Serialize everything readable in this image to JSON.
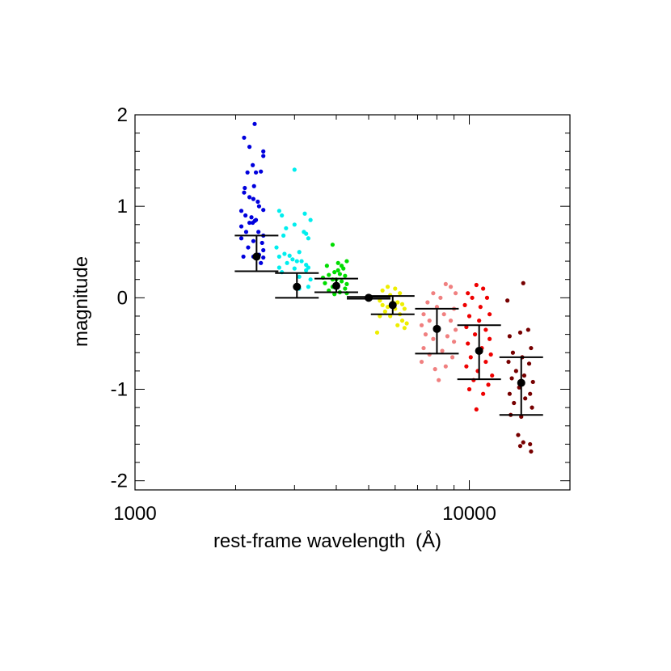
{
  "chart_data": {
    "type": "scatter",
    "xlabel": "rest-frame wavelength",
    "xlabel_unit": "(Å)",
    "ylabel": "magnitude",
    "x_scale": "log",
    "xlim": [
      1000,
      20000
    ],
    "ylim": [
      -2.1,
      2.0
    ],
    "x_ticks": [
      1000,
      10000
    ],
    "x_tick_labels": [
      "1000",
      "10000"
    ],
    "y_ticks": [
      2,
      1,
      0,
      -1,
      -2
    ],
    "y_tick_labels": [
      "2",
      "1",
      "0",
      "-1",
      "-2"
    ],
    "grid": false,
    "legend": "none",
    "series": [
      {
        "color": "#0000dd",
        "points": [
          [
            2280,
            1.9
          ],
          [
            2200,
            1.65
          ],
          [
            2120,
            1.75
          ],
          [
            2420,
            1.6
          ],
          [
            2420,
            1.55
          ],
          [
            2250,
            1.45
          ],
          [
            2170,
            1.37
          ],
          [
            2300,
            1.37
          ],
          [
            2380,
            1.38
          ],
          [
            2270,
            1.22
          ],
          [
            2130,
            1.2
          ],
          [
            2120,
            1.15
          ],
          [
            2200,
            1.1
          ],
          [
            2260,
            1.08
          ],
          [
            2330,
            1.05
          ],
          [
            2350,
            1.0
          ],
          [
            2420,
            0.96
          ],
          [
            2080,
            0.95
          ],
          [
            2140,
            0.9
          ],
          [
            2230,
            0.88
          ],
          [
            2280,
            0.84
          ],
          [
            2200,
            0.82
          ],
          [
            2250,
            0.82
          ],
          [
            2300,
            0.85
          ],
          [
            2080,
            0.78
          ],
          [
            2150,
            0.72
          ],
          [
            2340,
            0.72
          ],
          [
            2080,
            0.65
          ],
          [
            2420,
            0.68
          ],
          [
            2260,
            0.62
          ],
          [
            2400,
            0.6
          ],
          [
            2180,
            0.55
          ],
          [
            2420,
            0.52
          ],
          [
            2110,
            0.45
          ],
          [
            2260,
            0.45
          ],
          [
            2350,
            0.47
          ],
          [
            2420,
            0.44
          ],
          [
            2380,
            0.38
          ]
        ]
      },
      {
        "color": "#00eeee",
        "points": [
          [
            3000,
            1.4
          ],
          [
            3220,
            0.92
          ],
          [
            2700,
            0.95
          ],
          [
            2750,
            0.9
          ],
          [
            3350,
            0.85
          ],
          [
            3000,
            0.8
          ],
          [
            2830,
            0.76
          ],
          [
            3200,
            0.72
          ],
          [
            3250,
            0.7
          ],
          [
            2780,
            0.68
          ],
          [
            3300,
            0.65
          ],
          [
            2650,
            0.55
          ],
          [
            3100,
            0.5
          ],
          [
            2800,
            0.48
          ],
          [
            2900,
            0.46
          ],
          [
            2700,
            0.45
          ],
          [
            2960,
            0.42
          ],
          [
            3050,
            0.4
          ],
          [
            2850,
            0.38
          ],
          [
            3150,
            0.4
          ],
          [
            3250,
            0.36
          ],
          [
            2700,
            0.33
          ],
          [
            3000,
            0.32
          ],
          [
            3300,
            0.33
          ],
          [
            2750,
            0.28
          ],
          [
            3250,
            0.3
          ],
          [
            3100,
            0.23
          ],
          [
            3350,
            0.2
          ],
          [
            3300,
            0.12
          ],
          [
            3100,
            0.1
          ]
        ]
      },
      {
        "color": "#00dd00",
        "points": [
          [
            3900,
            0.58
          ],
          [
            4300,
            0.4
          ],
          [
            4050,
            0.38
          ],
          [
            4150,
            0.35
          ],
          [
            3750,
            0.35
          ],
          [
            4200,
            0.32
          ],
          [
            4050,
            0.3
          ],
          [
            3950,
            0.28
          ],
          [
            4100,
            0.26
          ],
          [
            3800,
            0.25
          ],
          [
            4250,
            0.24
          ],
          [
            3650,
            0.22
          ],
          [
            3900,
            0.2
          ],
          [
            4000,
            0.2
          ],
          [
            4150,
            0.18
          ],
          [
            3700,
            0.16
          ],
          [
            4300,
            0.15
          ],
          [
            3900,
            0.12
          ],
          [
            4250,
            0.1
          ],
          [
            3800,
            0.08
          ],
          [
            4100,
            0.06
          ],
          [
            3950,
            0.04
          ],
          [
            4300,
            0.05
          ]
        ]
      },
      {
        "color": "#eeee00",
        "points": [
          [
            5700,
            0.12
          ],
          [
            5500,
            0.08
          ],
          [
            6000,
            0.1
          ],
          [
            6200,
            0.05
          ],
          [
            5800,
            0.03
          ],
          [
            5400,
            -0.03
          ],
          [
            5900,
            -0.05
          ],
          [
            6100,
            -0.05
          ],
          [
            6300,
            -0.07
          ],
          [
            5500,
            -0.08
          ],
          [
            5700,
            -0.1
          ],
          [
            6000,
            -0.12
          ],
          [
            6400,
            -0.12
          ],
          [
            5600,
            -0.15
          ],
          [
            6200,
            -0.18
          ],
          [
            5400,
            -0.2
          ],
          [
            5800,
            -0.2
          ],
          [
            6300,
            -0.25
          ],
          [
            6500,
            -0.28
          ],
          [
            6100,
            -0.3
          ],
          [
            6400,
            -0.33
          ],
          [
            5300,
            -0.38
          ]
        ]
      },
      {
        "color": "#f08080",
        "points": [
          [
            8500,
            0.15
          ],
          [
            8800,
            0.12
          ],
          [
            7800,
            0.05
          ],
          [
            9100,
            0.05
          ],
          [
            8200,
            0.0
          ],
          [
            7500,
            -0.05
          ],
          [
            8000,
            -0.1
          ],
          [
            9000,
            -0.12
          ],
          [
            7300,
            -0.18
          ],
          [
            8400,
            -0.18
          ],
          [
            7600,
            -0.25
          ],
          [
            8800,
            -0.25
          ],
          [
            7200,
            -0.3
          ],
          [
            8000,
            -0.32
          ],
          [
            9100,
            -0.35
          ],
          [
            7400,
            -0.4
          ],
          [
            8600,
            -0.42
          ],
          [
            7800,
            -0.45
          ],
          [
            9000,
            -0.48
          ],
          [
            7300,
            -0.55
          ],
          [
            8300,
            -0.58
          ],
          [
            7600,
            -0.62
          ],
          [
            8900,
            -0.65
          ],
          [
            7200,
            -0.7
          ],
          [
            8500,
            -0.75
          ],
          [
            7900,
            -0.78
          ],
          [
            8100,
            -0.9
          ]
        ]
      },
      {
        "color": "#ee0000",
        "points": [
          [
            10500,
            0.14
          ],
          [
            11000,
            0.1
          ],
          [
            9900,
            0.05
          ],
          [
            10200,
            0.0
          ],
          [
            11300,
            0.0
          ],
          [
            9700,
            -0.08
          ],
          [
            10800,
            -0.1
          ],
          [
            11500,
            -0.18
          ],
          [
            10000,
            -0.2
          ],
          [
            10700,
            -0.25
          ],
          [
            9800,
            -0.32
          ],
          [
            11200,
            -0.35
          ],
          [
            10400,
            -0.4
          ],
          [
            11500,
            -0.45
          ],
          [
            9900,
            -0.5
          ],
          [
            10900,
            -0.55
          ],
          [
            11600,
            -0.62
          ],
          [
            10100,
            -0.65
          ],
          [
            11200,
            -0.7
          ],
          [
            9800,
            -0.75
          ],
          [
            10600,
            -0.8
          ],
          [
            11700,
            -0.85
          ],
          [
            10300,
            -0.9
          ],
          [
            11400,
            -0.95
          ],
          [
            10000,
            -1.0
          ],
          [
            11000,
            -1.05
          ],
          [
            10500,
            -1.22
          ]
        ]
      },
      {
        "color": "#770000",
        "points": [
          [
            14500,
            0.16
          ],
          [
            13000,
            -0.03
          ],
          [
            15000,
            -0.35
          ],
          [
            14200,
            -0.38
          ],
          [
            13200,
            -0.42
          ],
          [
            15300,
            -0.55
          ],
          [
            13500,
            -0.6
          ],
          [
            14400,
            -0.65
          ],
          [
            13100,
            -0.7
          ],
          [
            15100,
            -0.72
          ],
          [
            13800,
            -0.8
          ],
          [
            14600,
            -0.85
          ],
          [
            13400,
            -0.88
          ],
          [
            15500,
            -0.92
          ],
          [
            14100,
            -0.98
          ],
          [
            13200,
            -1.05
          ],
          [
            15200,
            -1.05
          ],
          [
            14700,
            -1.1
          ],
          [
            13600,
            -1.15
          ],
          [
            15400,
            -1.2
          ],
          [
            13300,
            -1.28
          ],
          [
            14300,
            -1.3
          ],
          [
            14000,
            -1.5
          ],
          [
            14500,
            -1.58
          ],
          [
            15200,
            -1.6
          ],
          [
            14200,
            -1.62
          ],
          [
            15300,
            -1.68
          ]
        ]
      }
    ],
    "binned_means": [
      {
        "x": 2310,
        "y": 0.45,
        "y_low": 0.29,
        "y_high": 0.68
      },
      {
        "x": 3050,
        "y": 0.12,
        "y_low": 0.0,
        "y_high": 0.27
      },
      {
        "x": 4000,
        "y": 0.13,
        "y_low": 0.06,
        "y_high": 0.21
      },
      {
        "x": 5000,
        "y": 0.0,
        "y_low": -0.01,
        "y_high": 0.01
      },
      {
        "x": 5900,
        "y": -0.08,
        "y_low": -0.18,
        "y_high": 0.02
      },
      {
        "x": 8000,
        "y": -0.34,
        "y_low": -0.61,
        "y_high": -0.12
      },
      {
        "x": 10700,
        "y": -0.58,
        "y_low": -0.89,
        "y_high": -0.3
      },
      {
        "x": 14300,
        "y": -0.93,
        "y_low": -1.28,
        "y_high": -0.65
      }
    ]
  }
}
